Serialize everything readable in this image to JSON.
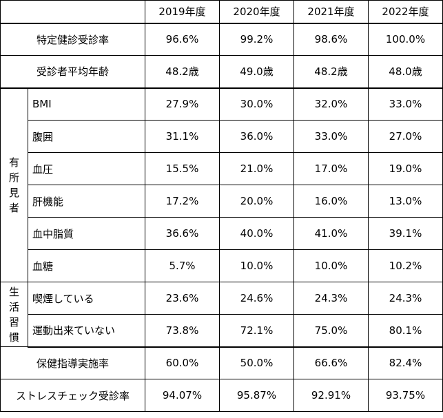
{
  "years": [
    "2019年度",
    "2020年度",
    "2021年度",
    "2022年度"
  ],
  "top_rows": [
    {
      "label": "特定健診受診率",
      "values": [
        "96.6%",
        "99.2%",
        "98.6%",
        "100.0%"
      ]
    },
    {
      "label": "受診者平均年齢",
      "values": [
        "48.2歳",
        "49.0歳",
        "48.2歳",
        "48.0歳"
      ]
    }
  ],
  "yusho": {
    "chars": [
      "有",
      "所",
      "見",
      "者"
    ],
    "rows": [
      {
        "label": "BMI",
        "values": [
          "27.9%",
          "30.0%",
          "32.0%",
          "33.0%"
        ]
      },
      {
        "label": "腹囲",
        "values": [
          "31.1%",
          "36.0%",
          "33.0%",
          "27.0%"
        ]
      },
      {
        "label": "血圧",
        "values": [
          "15.5%",
          "21.0%",
          "17.0%",
          "19.0%"
        ]
      },
      {
        "label": "肝機能",
        "values": [
          "17.2%",
          "20.0%",
          "16.0%",
          "13.0%"
        ]
      },
      {
        "label": "血中脂質",
        "values": [
          "36.6%",
          "40.0%",
          "41.0%",
          "39.1%"
        ]
      },
      {
        "label": "血糖",
        "values": [
          "5.7%",
          "10.0%",
          "10.0%",
          "10.2%"
        ]
      }
    ]
  },
  "seikatsu": {
    "chars": [
      "生",
      "活",
      "習",
      "慣"
    ],
    "rows": [
      {
        "label": "喫煙している",
        "values": [
          "23.6%",
          "24.6%",
          "24.3%",
          "24.3%"
        ]
      },
      {
        "label": "運動出来ていない",
        "values": [
          "73.8%",
          "72.1%",
          "75.0%",
          "80.1%"
        ]
      }
    ]
  },
  "bottom_rows": [
    {
      "label": "保健指導実施率",
      "values": [
        "60.0%",
        "50.0%",
        "66.6%",
        "82.4%"
      ]
    },
    {
      "label": "ストレスチェック受診率",
      "values": [
        "94.07%",
        "95.87%",
        "92.91%",
        "93.75%"
      ]
    }
  ]
}
